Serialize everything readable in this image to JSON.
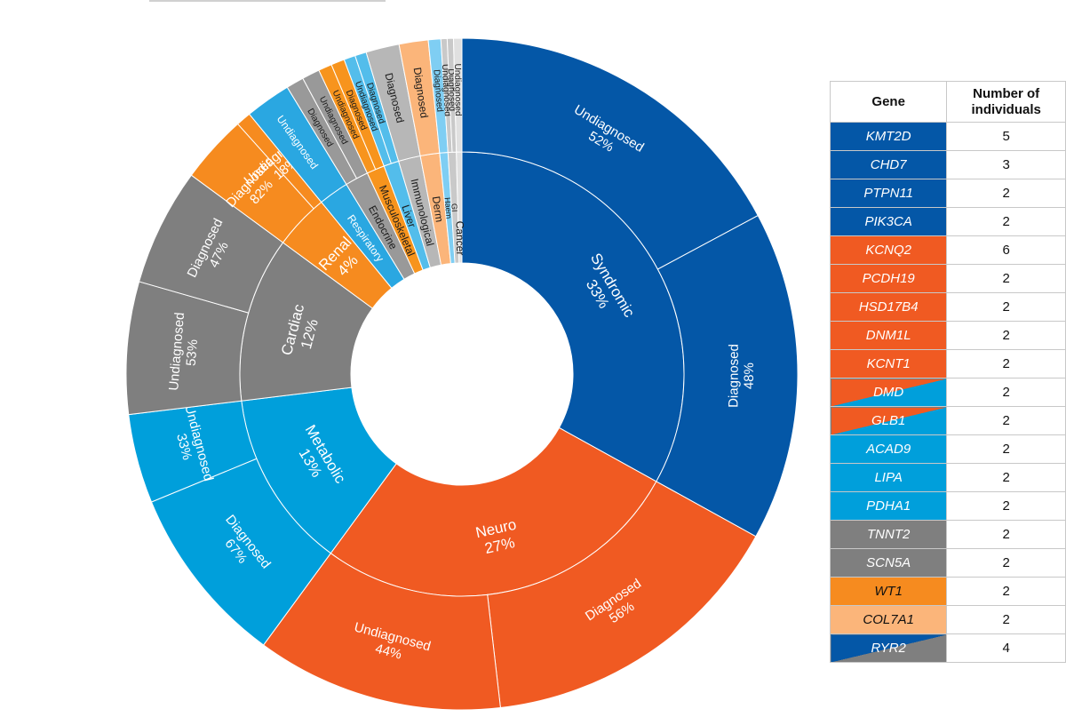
{
  "colors": {
    "syndromic": "#0457A7",
    "neuro": "#F05A22",
    "metabolic": "#009FDB",
    "cardiac": "#7F7F7F",
    "renal": "#F68B1F",
    "respiratory": "#2AA7E1",
    "endocrine": "#999999",
    "musculoskeletal": "#F7941D",
    "liver": "#53BDEB",
    "immunological": "#B7B7B7",
    "derm": "#FBB57A",
    "haem": "#7FCEF3",
    "gi": "#C9C9C9",
    "cancer": "#E0E0E0"
  },
  "chart_data": {
    "type": "sunburst",
    "title": "",
    "categories": [
      {
        "name": "Syndromic",
        "label": "Syndromic",
        "pct_label": "33%",
        "value": 33,
        "color_key": "syndromic",
        "children": [
          {
            "label": "Undiagnosed",
            "pct_label": "52%",
            "value": 52
          },
          {
            "label": "Diagnosed",
            "pct_label": "48%",
            "value": 48
          }
        ]
      },
      {
        "name": "Neuro",
        "label": "Neuro",
        "pct_label": "27%",
        "value": 27,
        "color_key": "neuro",
        "children": [
          {
            "label": "Diagnosed",
            "pct_label": "56%",
            "value": 56
          },
          {
            "label": "Undiagnosed",
            "pct_label": "44%",
            "value": 44
          }
        ]
      },
      {
        "name": "Metabolic",
        "label": "Metabolic",
        "pct_label": "13%",
        "value": 13,
        "color_key": "metabolic",
        "children": [
          {
            "label": "Diagnosed",
            "pct_label": "67%",
            "value": 67
          },
          {
            "label": "Undiagnosed",
            "pct_label": "33%",
            "value": 33
          }
        ]
      },
      {
        "name": "Cardiac",
        "label": "Cardiac",
        "pct_label": "12%",
        "value": 12,
        "color_key": "cardiac",
        "children": [
          {
            "label": "Undiagnosed",
            "pct_label": "53%",
            "value": 53
          },
          {
            "label": "Diagnosed",
            "pct_label": "47%",
            "value": 47
          }
        ]
      },
      {
        "name": "Renal",
        "label": "Renal",
        "pct_label": "4%",
        "value": 4,
        "color_key": "renal",
        "children": [
          {
            "label": "Diagnosed",
            "pct_label": "82%",
            "value": 82
          },
          {
            "label": "Undiagnosed",
            "pct_label": "18%",
            "value": 18
          }
        ]
      },
      {
        "name": "Respiratory",
        "label": "Respiratory",
        "value": 2.2,
        "color_key": "respiratory",
        "children": [
          {
            "label": "Undiagnosed",
            "value": 100
          }
        ]
      },
      {
        "name": "Endocrine",
        "label": "Endocrine",
        "value": 1.7,
        "color_key": "endocrine",
        "children": [
          {
            "label": "Diagnosed",
            "value": 50
          },
          {
            "label": "Undiagnosed",
            "value": 50
          }
        ]
      },
      {
        "name": "Musculoskeletal",
        "label": "Musculoskeletal",
        "value": 1.3,
        "color_key": "musculoskeletal",
        "children": [
          {
            "label": "Undiagnosed",
            "value": 50
          },
          {
            "label": "Diagnosed",
            "value": 50
          }
        ]
      },
      {
        "name": "Liver",
        "label": "Liver",
        "value": 1.1,
        "color_key": "liver",
        "children": [
          {
            "label": "Undiagnosed",
            "value": 50
          },
          {
            "label": "Diagnosed",
            "value": 50
          }
        ]
      },
      {
        "name": "Immunological",
        "label": "Immunological",
        "value": 1.6,
        "color_key": "immunological",
        "children": [
          {
            "label": "Diagnosed",
            "value": 100
          }
        ]
      },
      {
        "name": "Derm",
        "label": "Derm",
        "value": 1.4,
        "color_key": "derm",
        "children": [
          {
            "label": "Diagnosed",
            "value": 100
          }
        ]
      },
      {
        "name": "Haem",
        "label": "Haem",
        "value": 0.6,
        "color_key": "haem",
        "children": [
          {
            "label": "Diagnosed",
            "value": 100
          }
        ]
      },
      {
        "name": "GI",
        "label": "GI",
        "value": 0.6,
        "color_key": "gi",
        "children": [
          {
            "label": "Undiagnosed",
            "value": 50
          },
          {
            "label": "Diagnosed",
            "value": 50
          }
        ]
      },
      {
        "name": "Cancer",
        "label": "Cancer",
        "value": 0.4,
        "color_key": "cancer",
        "children": [
          {
            "label": "Undiagnosed",
            "value": 100
          }
        ]
      }
    ],
    "table": {
      "headers": [
        "Gene",
        "Number of individuals"
      ],
      "rows": [
        {
          "gene": "KMT2D",
          "count": "5",
          "colors": [
            "syndromic"
          ]
        },
        {
          "gene": "CHD7",
          "count": "3",
          "colors": [
            "syndromic"
          ]
        },
        {
          "gene": "PTPN11",
          "count": "2",
          "colors": [
            "syndromic"
          ]
        },
        {
          "gene": "PIK3CA",
          "count": "2",
          "colors": [
            "syndromic"
          ]
        },
        {
          "gene": "KCNQ2",
          "count": "6",
          "colors": [
            "neuro"
          ]
        },
        {
          "gene": "PCDH19",
          "count": "2",
          "colors": [
            "neuro"
          ]
        },
        {
          "gene": "HSD17B4",
          "count": "2",
          "colors": [
            "neuro"
          ]
        },
        {
          "gene": "DNM1L",
          "count": "2",
          "colors": [
            "neuro"
          ]
        },
        {
          "gene": "KCNT1",
          "count": "2",
          "colors": [
            "neuro"
          ]
        },
        {
          "gene": "DMD",
          "count": "2",
          "colors": [
            "neuro",
            "metabolic"
          ]
        },
        {
          "gene": "GLB1",
          "count": "2",
          "colors": [
            "neuro",
            "metabolic"
          ]
        },
        {
          "gene": "ACAD9",
          "count": "2",
          "colors": [
            "metabolic"
          ]
        },
        {
          "gene": "LIPA",
          "count": "2",
          "colors": [
            "metabolic"
          ]
        },
        {
          "gene": "PDHA1",
          "count": "2",
          "colors": [
            "metabolic"
          ]
        },
        {
          "gene": "TNNT2",
          "count": "2",
          "colors": [
            "cardiac"
          ]
        },
        {
          "gene": "SCN5A",
          "count": "2",
          "colors": [
            "cardiac"
          ]
        },
        {
          "gene": "WT1",
          "count": "2",
          "colors": [
            "renal"
          ]
        },
        {
          "gene": "COL7A1",
          "count": "2",
          "colors": [
            "derm"
          ]
        },
        {
          "gene": "RYR2",
          "count": "4",
          "colors": [
            "syndromic",
            "cardiac"
          ]
        }
      ]
    }
  }
}
